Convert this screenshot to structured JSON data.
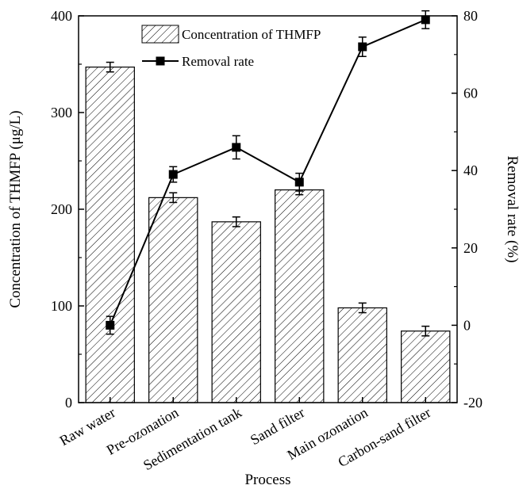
{
  "chart_data": {
    "type": "bar",
    "xlabel": "Process",
    "categories": [
      "Raw water",
      "Pre-ozonation",
      "Sedimentation tank",
      "Sand filter",
      "Main ozonation",
      "Carbon-sand filter"
    ],
    "series": [
      {
        "name": "Concentration of THMFP",
        "type": "bar",
        "axis": "left",
        "values": [
          347,
          212,
          187,
          220,
          98,
          74
        ],
        "error": [
          5,
          5,
          5,
          5,
          5,
          5
        ],
        "pattern": "diagonal-hatch"
      },
      {
        "name": "Removal rate",
        "type": "line",
        "axis": "right",
        "marker": "square",
        "values": [
          0,
          39,
          46,
          37,
          72,
          79
        ],
        "error": [
          2.3,
          2,
          3,
          2.3,
          2.5,
          2.3
        ]
      }
    ],
    "y_left": {
      "label": "Concentration of THMFP (μg/L)",
      "range": [
        0,
        400
      ],
      "ticks": [
        0,
        100,
        200,
        300,
        400
      ]
    },
    "y_right": {
      "label": "Removal rate (%)",
      "range": [
        -20,
        80
      ],
      "ticks": [
        -20,
        0,
        20,
        40,
        60,
        80
      ]
    },
    "grid": false,
    "legend": "top-center"
  }
}
